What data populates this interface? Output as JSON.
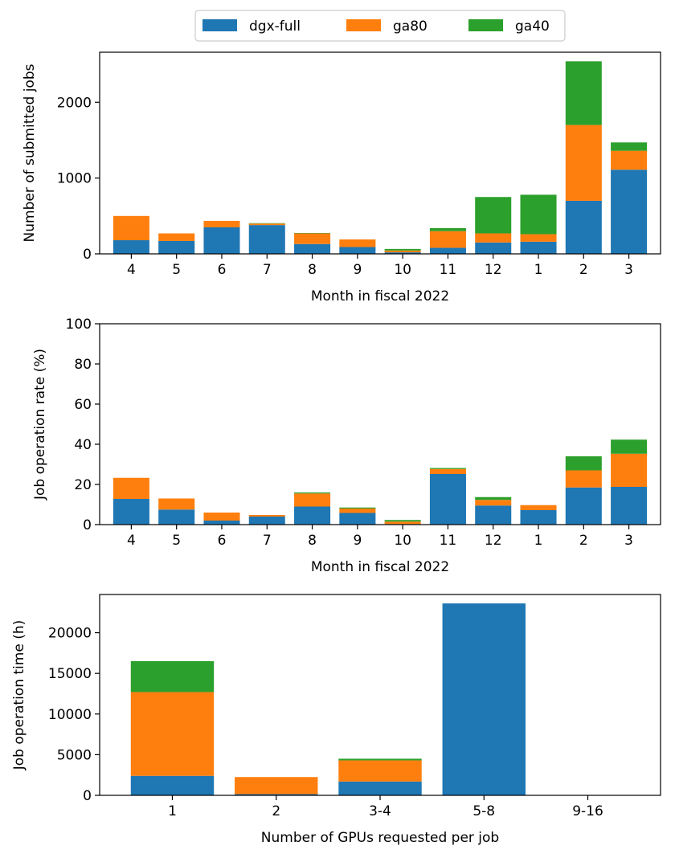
{
  "colors": {
    "dgx_full": "#1f77b4",
    "ga80": "#ff7f0e",
    "ga40": "#2ca02c"
  },
  "legend": {
    "placement": "top-center",
    "items": [
      "dgx-full",
      "ga80",
      "ga40"
    ]
  },
  "chart_data": [
    {
      "type": "bar",
      "stacked": true,
      "xlabel": "Month in fiscal 2022",
      "ylabel": "Number of submitted jobs",
      "ylim": [
        0,
        2660
      ],
      "yticks": [
        0,
        1000,
        2000
      ],
      "categories": [
        "4",
        "5",
        "6",
        "7",
        "8",
        "9",
        "10",
        "11",
        "12",
        "1",
        "2",
        "3"
      ],
      "series": [
        {
          "name": "dgx-full",
          "values": [
            180,
            170,
            350,
            380,
            130,
            90,
            20,
            80,
            150,
            160,
            700,
            1110
          ]
        },
        {
          "name": "ga80",
          "values": [
            320,
            100,
            85,
            20,
            140,
            100,
            25,
            220,
            120,
            100,
            1000,
            250
          ]
        },
        {
          "name": "ga40",
          "values": [
            0,
            0,
            0,
            5,
            5,
            0,
            20,
            40,
            480,
            520,
            840,
            110
          ]
        }
      ]
    },
    {
      "type": "bar",
      "stacked": true,
      "xlabel": "Month in fiscal 2022",
      "ylabel": "Job operation rate (%)",
      "ylim": [
        0,
        100
      ],
      "yticks": [
        0,
        20,
        40,
        60,
        80,
        100
      ],
      "categories": [
        "4",
        "5",
        "6",
        "7",
        "8",
        "9",
        "10",
        "11",
        "12",
        "1",
        "2",
        "3"
      ],
      "series": [
        {
          "name": "dgx-full",
          "values": [
            12.8,
            7.5,
            2.0,
            4.0,
            9.0,
            5.8,
            0.3,
            25.2,
            9.5,
            7.2,
            18.5,
            18.8
          ]
        },
        {
          "name": "ga80",
          "values": [
            10.5,
            5.5,
            4.0,
            0.8,
            6.5,
            2.2,
            1.2,
            2.5,
            2.8,
            2.5,
            8.5,
            16.5
          ]
        },
        {
          "name": "ga40",
          "values": [
            0,
            0,
            0,
            0,
            0.5,
            0.5,
            0.8,
            0.5,
            1.4,
            0,
            7.0,
            7.0
          ]
        }
      ]
    },
    {
      "type": "bar",
      "stacked": true,
      "xlabel": "Number of GPUs requested per job",
      "ylabel": "Job operation time (h)",
      "ylim": [
        0,
        24700
      ],
      "yticks": [
        0,
        5000,
        10000,
        15000,
        20000
      ],
      "categories": [
        "1",
        "2",
        "3-4",
        "5-8",
        "9-16"
      ],
      "series": [
        {
          "name": "dgx-full",
          "values": [
            2400,
            150,
            1700,
            23600,
            0
          ]
        },
        {
          "name": "ga80",
          "values": [
            10300,
            2100,
            2600,
            0,
            0
          ]
        },
        {
          "name": "ga40",
          "values": [
            3800,
            0,
            200,
            0,
            0
          ]
        }
      ]
    }
  ]
}
